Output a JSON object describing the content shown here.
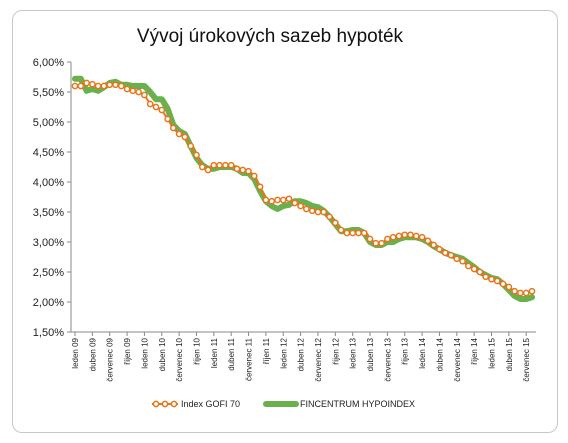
{
  "chart_data": {
    "type": "line",
    "title": "Vývoj úrokových sazeb hypoték",
    "xlabel": "",
    "ylabel": "",
    "ylim": [
      1.5,
      6.0
    ],
    "y_ticks": [
      "6,00%",
      "5,50%",
      "5,00%",
      "4,50%",
      "4,00%",
      "3,50%",
      "3,00%",
      "2,50%",
      "2,00%",
      "1,50%"
    ],
    "y_tick_values": [
      6.0,
      5.5,
      5.0,
      4.5,
      4.0,
      3.5,
      3.0,
      2.5,
      2.0,
      1.5
    ],
    "x_ticks": [
      "leden 09",
      "duben 09",
      "červenec 09",
      "říjen 09",
      "leden 10",
      "duben 10",
      "červenec 10",
      "říjen 10",
      "leden 11",
      "duben 11",
      "červenec 11",
      "říjen 11",
      "leden 12",
      "duben 12",
      "červenec 12",
      "říjen 12",
      "leden 13",
      "duben 13",
      "červenec 13",
      "říjen 13",
      "leden 14",
      "duben 14",
      "červenec 14",
      "říjen 14",
      "leden 15",
      "duben 15",
      "červenec 15"
    ],
    "grid": false,
    "legend": "bottom",
    "series": [
      {
        "name": "Index GOFI 70",
        "color": "#e8751a",
        "style": "line-with-open-circles",
        "values": [
          5.6,
          5.6,
          5.65,
          5.63,
          5.6,
          5.6,
          5.62,
          5.62,
          5.6,
          5.55,
          5.52,
          5.5,
          5.45,
          5.3,
          5.25,
          5.2,
          5.05,
          4.9,
          4.8,
          4.75,
          4.6,
          4.45,
          4.25,
          4.2,
          4.28,
          4.28,
          4.28,
          4.28,
          4.22,
          4.2,
          4.18,
          4.1,
          3.92,
          3.7,
          3.68,
          3.7,
          3.7,
          3.72,
          3.65,
          3.6,
          3.55,
          3.52,
          3.5,
          3.5,
          3.42,
          3.32,
          3.2,
          3.15,
          3.15,
          3.15,
          3.15,
          3.05,
          2.98,
          2.98,
          3.05,
          3.08,
          3.1,
          3.12,
          3.12,
          3.1,
          3.08,
          3.02,
          2.95,
          2.88,
          2.82,
          2.78,
          2.72,
          2.68,
          2.6,
          2.55,
          2.5,
          2.42,
          2.38,
          2.35,
          2.3,
          2.25,
          2.18,
          2.15,
          2.15,
          2.18
        ]
      },
      {
        "name": "FINCENTRUM HYPOINDEX",
        "color": "#6ab04c",
        "style": "thick-line",
        "values": [
          5.72,
          5.72,
          5.52,
          5.55,
          5.52,
          5.58,
          5.65,
          5.67,
          5.62,
          5.62,
          5.6,
          5.6,
          5.6,
          5.5,
          5.38,
          5.38,
          5.22,
          4.95,
          4.85,
          4.8,
          4.6,
          4.4,
          4.28,
          4.22,
          4.22,
          4.25,
          4.25,
          4.25,
          4.22,
          4.15,
          4.15,
          4.05,
          3.85,
          3.68,
          3.6,
          3.55,
          3.6,
          3.62,
          3.68,
          3.68,
          3.65,
          3.6,
          3.58,
          3.52,
          3.42,
          3.3,
          3.18,
          3.18,
          3.2,
          3.2,
          3.15,
          3.0,
          2.95,
          2.95,
          3.0,
          3.0,
          3.05,
          3.08,
          3.08,
          3.08,
          3.05,
          3.0,
          2.93,
          2.88,
          2.82,
          2.78,
          2.75,
          2.72,
          2.65,
          2.58,
          2.5,
          2.45,
          2.4,
          2.38,
          2.3,
          2.2,
          2.1,
          2.05,
          2.05,
          2.08
        ]
      }
    ]
  }
}
